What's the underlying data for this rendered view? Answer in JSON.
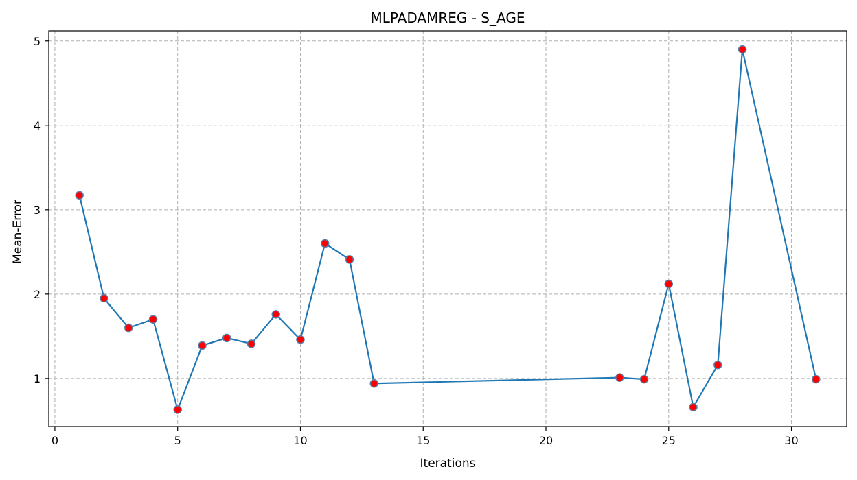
{
  "chart_data": {
    "type": "line",
    "title": "MLPADAMREG - S_AGE",
    "xlabel": "Iterations",
    "ylabel": "Mean-Error",
    "xlim": [
      -0.25,
      32.25
    ],
    "ylim": [
      0.43,
      5.12
    ],
    "xticks": [
      0,
      5,
      10,
      15,
      20,
      25,
      30
    ],
    "yticks": [
      1,
      2,
      3,
      4,
      5
    ],
    "grid": true,
    "series": [
      {
        "line_color": "#1f77b4",
        "marker_fill": "#ff0000",
        "marker_edge": "#5a7fa8",
        "x": [
          1,
          2,
          3,
          4,
          5,
          6,
          7,
          8,
          9,
          10,
          11,
          12,
          13,
          23,
          24,
          25,
          26,
          27,
          28,
          31
        ],
        "y": [
          3.17,
          1.95,
          1.6,
          1.7,
          0.63,
          1.39,
          1.48,
          1.41,
          1.76,
          1.46,
          2.6,
          2.41,
          0.94,
          1.01,
          0.99,
          2.12,
          0.66,
          1.16,
          4.9,
          0.99
        ]
      }
    ]
  }
}
